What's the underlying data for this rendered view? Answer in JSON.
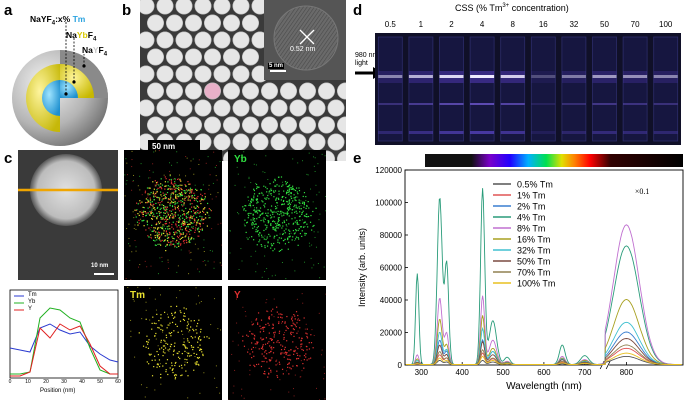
{
  "panels": {
    "a": {
      "label": "a",
      "layers": [
        {
          "prefix": "NaYF",
          "sub": "4",
          "mid": ":x% ",
          "accent": "Tm",
          "accent_color": "#2ba3e0"
        },
        {
          "prefix": "Na",
          "accent": "Yb",
          "suffix": "F",
          "sub": "4",
          "accent_color": "#d8c800"
        },
        {
          "prefix": "Na",
          "accent": "Y",
          "suffix": "F",
          "sub": "4",
          "accent_color": "#c8c8c8"
        }
      ]
    },
    "b": {
      "label": "b",
      "scale_main": "50 nm",
      "scale_inset": "5 nm",
      "lattice": "0.52 nm"
    },
    "c": {
      "label": "c",
      "scale": "10 nm",
      "map_labels": [
        "Yb",
        "Tm",
        "Y"
      ],
      "line_legend": [
        "Tm",
        "Yb",
        "Y"
      ],
      "line_xlabel": "Position (nm)",
      "line_xticks": [
        "0",
        "10",
        "20",
        "30",
        "40",
        "50",
        "60"
      ]
    },
    "d": {
      "label": "d",
      "title": "CSS (% Tm",
      "title_sup": "3+",
      "title_end": " concentration)",
      "light_label": [
        "980 nm",
        "light"
      ],
      "vials": [
        "0.5",
        "1",
        "2",
        "4",
        "8",
        "16",
        "32",
        "50",
        "70",
        "100"
      ]
    },
    "e": {
      "label": "e",
      "scale_note": "×0.1"
    }
  },
  "chart_data": {
    "type": "line",
    "xlabel": "Wavelength (nm)",
    "ylabel": "Intensity (arb. units)",
    "ylim": [
      0,
      120000
    ],
    "yticks": [
      0,
      20000,
      40000,
      60000,
      80000,
      100000,
      120000
    ],
    "xticks": [
      300,
      400,
      500,
      600,
      700,
      800
    ],
    "axis_break": [
      750,
      770
    ],
    "peaks_nm": [
      290,
      345,
      362,
      450,
      475,
      510,
      645,
      700,
      800
    ],
    "series": [
      {
        "name": "0.5% Tm",
        "color": "#555555",
        "peaks": [
          0,
          2500,
          1500,
          2500,
          1500,
          500,
          500,
          400,
          5000
        ]
      },
      {
        "name": "1% Tm",
        "color": "#e05555",
        "peaks": [
          300,
          6000,
          4000,
          7000,
          3500,
          800,
          1500,
          700,
          10000
        ]
      },
      {
        "name": "2% Tm",
        "color": "#3a7fd0",
        "peaks": [
          1000,
          15000,
          8000,
          15000,
          8000,
          1200,
          3000,
          1500,
          20000
        ]
      },
      {
        "name": "4% Tm",
        "color": "#2a9c7a",
        "peaks": [
          56000,
          103000,
          62000,
          108000,
          27000,
          4500,
          12000,
          5500,
          73000
        ]
      },
      {
        "name": "8% Tm",
        "color": "#c070d0",
        "peaks": [
          6000,
          41000,
          19000,
          42000,
          15000,
          2000,
          5000,
          3000,
          86000
        ]
      },
      {
        "name": "16% Tm",
        "color": "#a8a020",
        "peaks": [
          3500,
          28000,
          12000,
          30000,
          10000,
          1500,
          4000,
          2500,
          40000
        ]
      },
      {
        "name": "32% Tm",
        "color": "#40c0d0",
        "peaks": [
          2500,
          20000,
          9000,
          22000,
          8000,
          1200,
          3500,
          2000,
          26000
        ]
      },
      {
        "name": "50% Tm",
        "color": "#7a4a40",
        "peaks": [
          1500,
          12000,
          6000,
          14000,
          6000,
          1000,
          3000,
          1500,
          16000
        ]
      },
      {
        "name": "70% Tm",
        "color": "#908050",
        "peaks": [
          1000,
          8000,
          4000,
          9000,
          4000,
          800,
          2000,
          1000,
          12000
        ]
      },
      {
        "name": "100% Tm",
        "color": "#e8c020",
        "peaks": [
          500,
          4000,
          2500,
          5000,
          2500,
          500,
          1000,
          700,
          7000
        ]
      }
    ]
  }
}
